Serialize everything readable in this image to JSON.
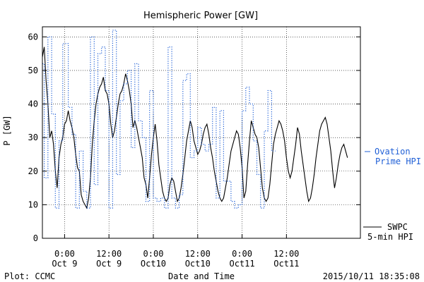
{
  "chart_data": {
    "type": "line",
    "title": "Hemispheric Power [GW]",
    "ylabel": "P [GW]",
    "xlabel": "Date and Time",
    "ylim": [
      0,
      63
    ],
    "xlim_hours": [
      -6,
      80
    ],
    "yticks": [
      0,
      10,
      20,
      30,
      40,
      50,
      60
    ],
    "xticks": [
      {
        "time": "2015-10-09 00:00",
        "line1": "0:00",
        "line2": "Oct 9"
      },
      {
        "time": "2015-10-09 12:00",
        "line1": "12:00",
        "line2": "Oct 9"
      },
      {
        "time": "2015-10-10 00:00",
        "line1": "0:00",
        "line2": "Oct10"
      },
      {
        "time": "2015-10-10 12:00",
        "line1": "12:00",
        "line2": "Oct10"
      },
      {
        "time": "2015-10-11 00:00",
        "line1": "0:00",
        "line2": "Oct11"
      },
      {
        "time": "2015-10-11 12:00",
        "line1": "12:00",
        "line2": "Oct11"
      }
    ],
    "grid": true,
    "series": [
      {
        "name": "SWPC 5-min HPI",
        "legend_line1": "SWPC",
        "legend_line2": "5-min HPI",
        "color": "#000000",
        "style": "solid",
        "points": [
          [
            -6,
            54
          ],
          [
            -5.5,
            57
          ],
          [
            -5,
            47
          ],
          [
            -4.5,
            40
          ],
          [
            -4,
            30
          ],
          [
            -3.5,
            32
          ],
          [
            -3,
            28
          ],
          [
            -2.5,
            20
          ],
          [
            -2,
            15
          ],
          [
            -1.5,
            24
          ],
          [
            -1,
            28
          ],
          [
            -0.5,
            30
          ],
          [
            0,
            34
          ],
          [
            0.5,
            35
          ],
          [
            1,
            38
          ],
          [
            1.5,
            35
          ],
          [
            2,
            33
          ],
          [
            2.5,
            30
          ],
          [
            3,
            25
          ],
          [
            3.5,
            21
          ],
          [
            4,
            20
          ],
          [
            4.5,
            13
          ],
          [
            5,
            11
          ],
          [
            5.5,
            10
          ],
          [
            6,
            9
          ],
          [
            6.5,
            12
          ],
          [
            7,
            18
          ],
          [
            7.5,
            28
          ],
          [
            8,
            35
          ],
          [
            8.5,
            40
          ],
          [
            9,
            43
          ],
          [
            9.5,
            45
          ],
          [
            10,
            46
          ],
          [
            10.5,
            48
          ],
          [
            11,
            44
          ],
          [
            11.5,
            43
          ],
          [
            12,
            40
          ],
          [
            12.5,
            34
          ],
          [
            13,
            30
          ],
          [
            13.5,
            32
          ],
          [
            14,
            36
          ],
          [
            14.5,
            40
          ],
          [
            15,
            43
          ],
          [
            15.5,
            44
          ],
          [
            16,
            46
          ],
          [
            16.5,
            49
          ],
          [
            17,
            47
          ],
          [
            17.5,
            44
          ],
          [
            18,
            40
          ],
          [
            18.5,
            33
          ],
          [
            19,
            35
          ],
          [
            19.5,
            33
          ],
          [
            20,
            30
          ],
          [
            20.5,
            27
          ],
          [
            21,
            24
          ],
          [
            21.5,
            18
          ],
          [
            22,
            16
          ],
          [
            22.5,
            12
          ],
          [
            23,
            18
          ],
          [
            23.5,
            25
          ],
          [
            24,
            30
          ],
          [
            24.5,
            34
          ],
          [
            25,
            29
          ],
          [
            25.5,
            22
          ],
          [
            26,
            18
          ],
          [
            26.5,
            14
          ],
          [
            27,
            12
          ],
          [
            27.5,
            11
          ],
          [
            28,
            12
          ],
          [
            28.5,
            16
          ],
          [
            29,
            18
          ],
          [
            29.5,
            17
          ],
          [
            30,
            14
          ],
          [
            30.5,
            11
          ],
          [
            31,
            12
          ],
          [
            31.5,
            15
          ],
          [
            32,
            19
          ],
          [
            32.5,
            24
          ],
          [
            33,
            29
          ],
          [
            33.5,
            32
          ],
          [
            34,
            35
          ],
          [
            34.5,
            33
          ],
          [
            35,
            29
          ],
          [
            35.5,
            27
          ],
          [
            36,
            25
          ],
          [
            36.5,
            26
          ],
          [
            37,
            28
          ],
          [
            37.5,
            31
          ],
          [
            38,
            33
          ],
          [
            38.5,
            34
          ],
          [
            39,
            31
          ],
          [
            39.5,
            27
          ],
          [
            40,
            24
          ],
          [
            40.5,
            20
          ],
          [
            41,
            17
          ],
          [
            41.5,
            14
          ],
          [
            42,
            12
          ],
          [
            42.5,
            11
          ],
          [
            43,
            12
          ],
          [
            43.5,
            15
          ],
          [
            44,
            18
          ],
          [
            44.5,
            22
          ],
          [
            45,
            26
          ],
          [
            45.5,
            28
          ],
          [
            46,
            30
          ],
          [
            46.5,
            32
          ],
          [
            47,
            31
          ],
          [
            47.5,
            27
          ],
          [
            48,
            21
          ],
          [
            48.5,
            12
          ],
          [
            49,
            14
          ],
          [
            49.5,
            22
          ],
          [
            50,
            29
          ],
          [
            50.5,
            35
          ],
          [
            51,
            33
          ],
          [
            51.5,
            31
          ],
          [
            52,
            30
          ],
          [
            52.5,
            27
          ],
          [
            53,
            21
          ],
          [
            53.5,
            15
          ],
          [
            54,
            12
          ],
          [
            54.5,
            11
          ],
          [
            55,
            12
          ],
          [
            55.5,
            16
          ],
          [
            56,
            22
          ],
          [
            56.5,
            28
          ],
          [
            57,
            31
          ],
          [
            57.5,
            33
          ],
          [
            58,
            35
          ],
          [
            58.5,
            34
          ],
          [
            59,
            32
          ],
          [
            59.5,
            29
          ],
          [
            60,
            24
          ],
          [
            60.5,
            20
          ],
          [
            61,
            18
          ],
          [
            61.5,
            20
          ],
          [
            62,
            24
          ],
          [
            62.5,
            28
          ],
          [
            63,
            33
          ],
          [
            63.5,
            31
          ],
          [
            64,
            26
          ],
          [
            64.5,
            22
          ],
          [
            65,
            18
          ],
          [
            65.5,
            14
          ],
          [
            66,
            11
          ],
          [
            66.5,
            12
          ],
          [
            67,
            15
          ],
          [
            67.5,
            19
          ],
          [
            68,
            24
          ],
          [
            68.5,
            28
          ],
          [
            69,
            32
          ],
          [
            69.5,
            34
          ],
          [
            70,
            35
          ],
          [
            70.5,
            36
          ],
          [
            71,
            34
          ],
          [
            71.5,
            30
          ],
          [
            72,
            26
          ],
          [
            72.5,
            20
          ],
          [
            73,
            15
          ],
          [
            73.5,
            18
          ],
          [
            74,
            22
          ],
          [
            74.5,
            25
          ],
          [
            75,
            27
          ],
          [
            75.5,
            28
          ],
          [
            76,
            26
          ],
          [
            76.5,
            24
          ]
        ]
      },
      {
        "name": "Ovation Prime HPI",
        "legend_line1": "Ovation",
        "legend_line2": "Prime HPI",
        "color": "#1f5fd6",
        "style": "dotted-step",
        "points": [
          [
            -6,
            52
          ],
          [
            -5.5,
            18
          ],
          [
            -4.5,
            60
          ],
          [
            -3.5,
            37
          ],
          [
            -2.5,
            9
          ],
          [
            -1.5,
            29
          ],
          [
            -0.5,
            58
          ],
          [
            1,
            39
          ],
          [
            2,
            31
          ],
          [
            3,
            9
          ],
          [
            4,
            26
          ],
          [
            5,
            14
          ],
          [
            6,
            9
          ],
          [
            7,
            60
          ],
          [
            8,
            16
          ],
          [
            9,
            55
          ],
          [
            10,
            57
          ],
          [
            11,
            44
          ],
          [
            12,
            9
          ],
          [
            13,
            62
          ],
          [
            14,
            19
          ],
          [
            15,
            41
          ],
          [
            16,
            46
          ],
          [
            17,
            50
          ],
          [
            18,
            27
          ],
          [
            19,
            52
          ],
          [
            20,
            35
          ],
          [
            21,
            30
          ],
          [
            22,
            11
          ],
          [
            23,
            44
          ],
          [
            24,
            12
          ],
          [
            25,
            11
          ],
          [
            26,
            12
          ],
          [
            27,
            9
          ],
          [
            28,
            57
          ],
          [
            29,
            12
          ],
          [
            30,
            9
          ],
          [
            31,
            13
          ],
          [
            32,
            47
          ],
          [
            33,
            49
          ],
          [
            34,
            24
          ],
          [
            35,
            26
          ],
          [
            36,
            33
          ],
          [
            37,
            28
          ],
          [
            38,
            26
          ],
          [
            39,
            28
          ],
          [
            40,
            39
          ],
          [
            41,
            12
          ],
          [
            42,
            38
          ],
          [
            43,
            17
          ],
          [
            44,
            17
          ],
          [
            45,
            11
          ],
          [
            46,
            9
          ],
          [
            47,
            10
          ],
          [
            48,
            38
          ],
          [
            49,
            45
          ],
          [
            50,
            40
          ],
          [
            51,
            29
          ],
          [
            52,
            19
          ],
          [
            53,
            9
          ],
          [
            54,
            32
          ],
          [
            55,
            44
          ],
          [
            56,
            26
          ]
        ]
      }
    ]
  },
  "footer": {
    "left": "Plot: CCMC",
    "center": "Date and Time",
    "right": "2015/10/11 18:35:08"
  }
}
